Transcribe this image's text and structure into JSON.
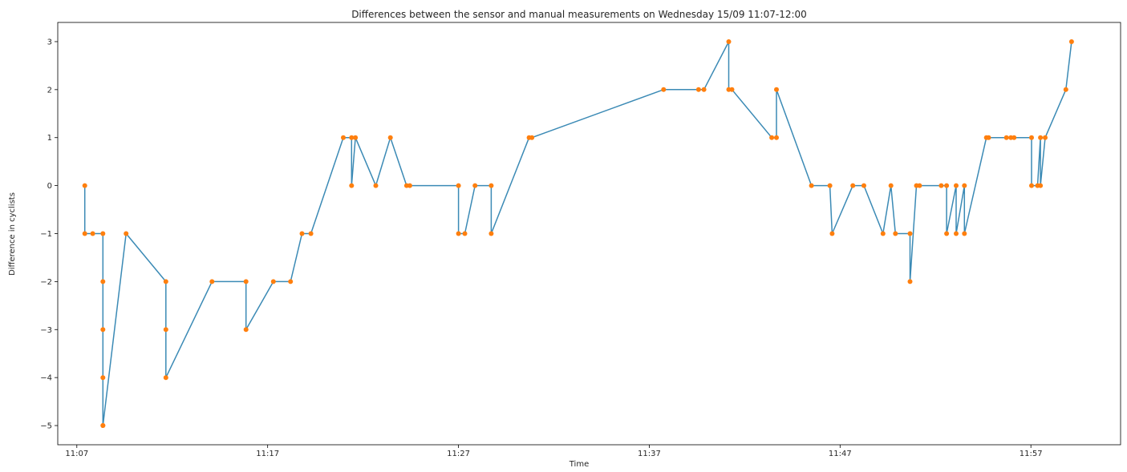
{
  "chart_data": {
    "type": "line",
    "title": "Differences between the sensor and manual measurements on Wednesday 15/09 11:07-12:00",
    "xlabel": "Time",
    "ylabel": "Difference in cyclists",
    "x_ticks": [
      "11:07",
      "11:17",
      "11:27",
      "11:37",
      "11:47",
      "11:57"
    ],
    "x_tick_minutes": [
      7,
      17,
      27,
      37,
      47,
      57
    ],
    "y_ticks": [
      -5,
      -4,
      -3,
      -2,
      -1,
      0,
      1,
      2,
      3
    ],
    "xlim": [
      6.0,
      61.7
    ],
    "ylim": [
      -5.4,
      3.4
    ],
    "grid": false,
    "line_color": "#3b8ab5",
    "marker_color": "#ff7f0e",
    "series": [
      {
        "x_time": [
          "11:07:25",
          "11:07:25",
          "11:07:50",
          "11:08:22",
          "11:08:22",
          "11:08:22",
          "11:08:22",
          "11:08:22",
          "11:08:22",
          "11:09:35",
          "11:11:40",
          "11:11:40",
          "11:11:40",
          "11:14:05",
          "11:15:52",
          "11:15:52",
          "11:17:18",
          "11:18:12",
          "11:18:48",
          "11:19:16",
          "11:20:58",
          "11:21:24",
          "11:21:24",
          "11:21:36",
          "11:22:40",
          "11:23:26",
          "11:24:17",
          "11:24:27",
          "11:27:00",
          "11:27:00",
          "11:27:20",
          "11:27:52",
          "11:28:43",
          "11:28:43",
          "11:30:42",
          "11:30:51",
          "11:37:45",
          "11:39:35",
          "11:39:52",
          "11:41:10",
          "11:41:10",
          "11:41:20",
          "11:43:25",
          "11:43:40",
          "11:43:40",
          "11:45:30",
          "11:46:28",
          "11:46:35",
          "11:47:40",
          "11:48:15",
          "11:49:15",
          "11:49:40",
          "11:49:54",
          "11:50:40",
          "11:50:40",
          "11:51:00",
          "11:51:10",
          "11:52:18",
          "11:52:35",
          "11:52:35",
          "11:53:05",
          "11:53:05",
          "11:53:31",
          "11:53:31",
          "11:54:40",
          "11:54:47",
          "11:55:43",
          "11:55:57",
          "11:56:07",
          "11:57:02",
          "11:57:02",
          "11:57:21",
          "11:57:30",
          "11:57:30",
          "11:57:45",
          "11:58:50",
          "11:59:08"
        ],
        "y": [
          0,
          -1,
          -1,
          -1,
          -2,
          -3,
          -4,
          -5,
          -5,
          -1,
          -2,
          -3,
          -4,
          -2,
          -2,
          -3,
          -2,
          -2,
          -1,
          -1,
          1,
          1,
          0,
          1,
          0,
          1,
          0,
          0,
          0,
          -1,
          -1,
          0,
          0,
          -1,
          1,
          1,
          2,
          2,
          2,
          3,
          2,
          2,
          1,
          1,
          2,
          0,
          0,
          -1,
          0,
          0,
          -1,
          0,
          -1,
          -1,
          -2,
          0,
          0,
          0,
          0,
          -1,
          0,
          -1,
          0,
          -1,
          1,
          1,
          1,
          1,
          1,
          1,
          0,
          0,
          1,
          0,
          1,
          2,
          3
        ]
      }
    ]
  }
}
